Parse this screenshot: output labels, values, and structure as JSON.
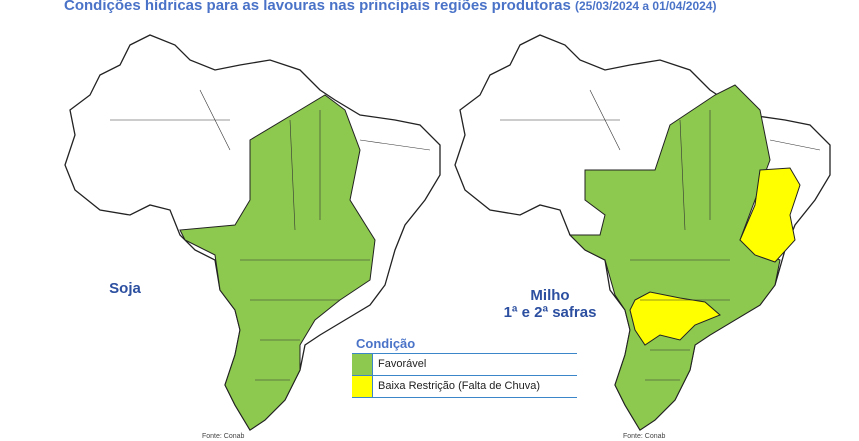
{
  "title": {
    "main": "Condições hídricas para as lavouras nas principais regiões produtoras",
    "dates": "(25/03/2024 a 01/04/2024)"
  },
  "maps": [
    {
      "label": "Soja",
      "source": "Fonte: Conab"
    },
    {
      "label_line1": "Milho",
      "label_line2": "1ª e 2ª safras",
      "source": "Fonte: Conab"
    }
  ],
  "legend": {
    "title": "Condição",
    "items": [
      {
        "label": "Favorável",
        "color": "#8dc94e"
      },
      {
        "label": "Baixa Restrição (Falta de Chuva)",
        "color": "#ffff00"
      }
    ]
  }
}
